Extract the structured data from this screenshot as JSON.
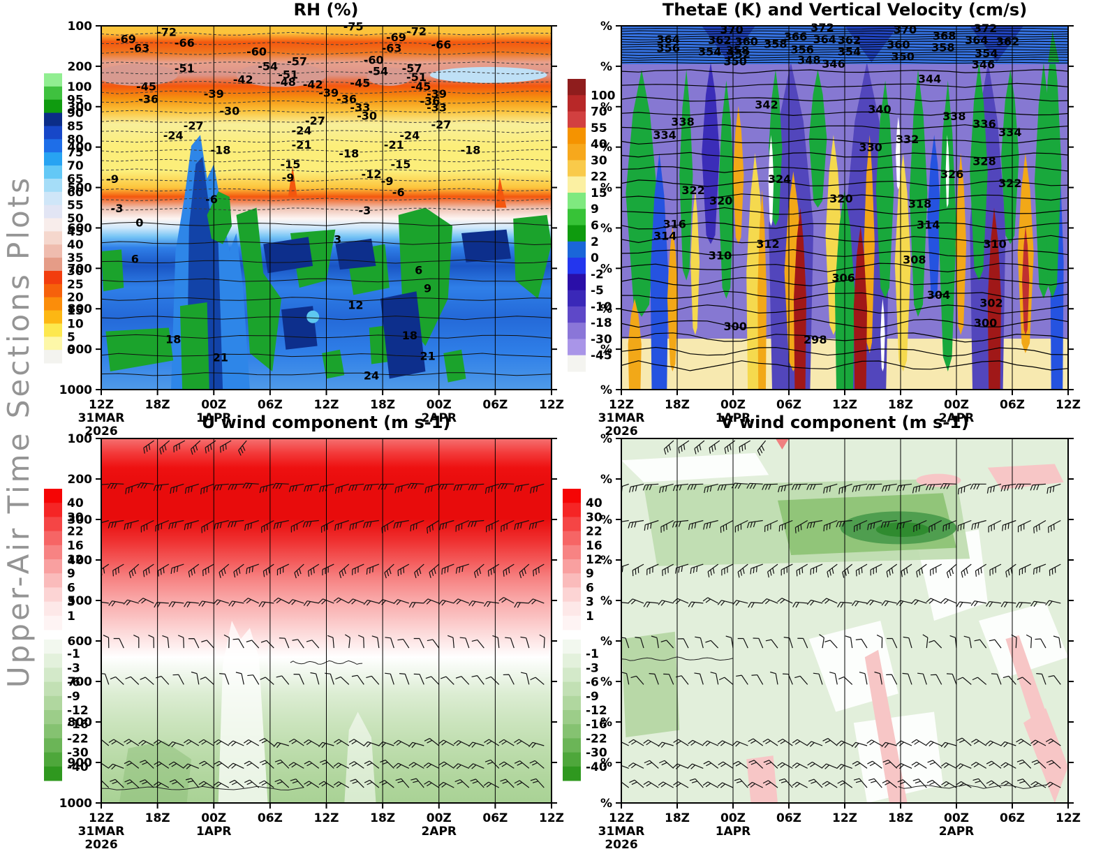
{
  "figure": {
    "vertical_title": "Upper-Air Time Sections Plots"
  },
  "chart_data": [
    {
      "id": "rh",
      "type": "contour",
      "title": "RH (%)",
      "y_axis": {
        "ticks": [
          "100",
          "200",
          "300",
          "400",
          "500",
          "600",
          "700",
          "800",
          "900",
          "1000"
        ]
      },
      "x_axis": {
        "ticks": [
          "12Z",
          "18Z",
          "00Z",
          "06Z",
          "12Z",
          "18Z",
          "00Z",
          "06Z",
          "12Z"
        ],
        "dates": [
          "31MAR",
          "",
          "1APR",
          "",
          "",
          "",
          "2APR",
          "",
          ""
        ],
        "year": "2026"
      },
      "colorbar": {
        "labels": [
          "100",
          "95",
          "90",
          "85",
          "80",
          "75",
          "70",
          "65",
          "60",
          "55",
          "50",
          "45",
          "40",
          "35",
          "30",
          "25",
          "20",
          "15",
          "10",
          "5",
          "0"
        ],
        "colors": [
          "#91ee91",
          "#3fc13f",
          "#0f9b0f",
          "#0b2d88",
          "#1747c8",
          "#1e6ee8",
          "#27a3f2",
          "#63c8f6",
          "#a5ddf8",
          "#cfe6f8",
          "#e2e5f4",
          "#f8edeb",
          "#f5d7cd",
          "#efbcae",
          "#e59c87",
          "#f23d0e",
          "#f6610b",
          "#fb8d0a",
          "#fdb713",
          "#fde84e",
          "#fdf7a8",
          "#f3f3ef"
        ]
      },
      "contour_labels": [
        [
          0.56,
          0.012,
          "-75"
        ],
        [
          0.145,
          0.028,
          "-72"
        ],
        [
          0.7,
          0.026,
          "-72"
        ],
        [
          0.055,
          0.047,
          "-69"
        ],
        [
          0.655,
          0.042,
          "-69"
        ],
        [
          0.185,
          0.058,
          "-66"
        ],
        [
          0.755,
          0.062,
          "-66"
        ],
        [
          0.085,
          0.072,
          "-63"
        ],
        [
          0.645,
          0.072,
          "-63"
        ],
        [
          0.345,
          0.082,
          "-60"
        ],
        [
          0.605,
          0.105,
          "-60"
        ],
        [
          0.435,
          0.108,
          "-57"
        ],
        [
          0.69,
          0.128,
          "-57"
        ],
        [
          0.37,
          0.122,
          "-54"
        ],
        [
          0.615,
          0.135,
          "-54"
        ],
        [
          0.185,
          0.128,
          "-51"
        ],
        [
          0.415,
          0.145,
          "-51"
        ],
        [
          0.7,
          0.152,
          "-51"
        ],
        [
          0.41,
          0.165,
          "-48"
        ],
        [
          0.1,
          0.178,
          "-45"
        ],
        [
          0.575,
          0.168,
          "-45"
        ],
        [
          0.71,
          0.178,
          "-45"
        ],
        [
          0.315,
          0.158,
          "-42"
        ],
        [
          0.47,
          0.172,
          "-42"
        ],
        [
          0.25,
          0.198,
          "-39"
        ],
        [
          0.505,
          0.195,
          "-39"
        ],
        [
          0.745,
          0.198,
          "-39"
        ],
        [
          0.105,
          0.212,
          "-36"
        ],
        [
          0.545,
          0.212,
          "-36"
        ],
        [
          0.73,
          0.218,
          "-36"
        ],
        [
          0.575,
          0.235,
          "-33"
        ],
        [
          0.745,
          0.235,
          "-33"
        ],
        [
          0.285,
          0.245,
          "-30"
        ],
        [
          0.59,
          0.258,
          "-30"
        ],
        [
          0.205,
          0.285,
          "-27"
        ],
        [
          0.475,
          0.272,
          "-27"
        ],
        [
          0.755,
          0.282,
          "-27"
        ],
        [
          0.16,
          0.312,
          "-24"
        ],
        [
          0.445,
          0.298,
          "-24"
        ],
        [
          0.685,
          0.312,
          "-24"
        ],
        [
          0.445,
          0.338,
          "-21"
        ],
        [
          0.65,
          0.338,
          "-21"
        ],
        [
          0.265,
          0.352,
          "-18"
        ],
        [
          0.55,
          0.362,
          "-18"
        ],
        [
          0.82,
          0.352,
          "-18"
        ],
        [
          0.42,
          0.392,
          "-15"
        ],
        [
          0.665,
          0.392,
          "-15"
        ],
        [
          0.6,
          0.418,
          "-12"
        ],
        [
          0.025,
          0.432,
          "-9"
        ],
        [
          0.415,
          0.428,
          "-9"
        ],
        [
          0.635,
          0.438,
          "-9"
        ],
        [
          0.245,
          0.488,
          "-6"
        ],
        [
          0.66,
          0.468,
          "-6"
        ],
        [
          0.035,
          0.512,
          "-3"
        ],
        [
          0.585,
          0.518,
          "-3"
        ],
        [
          0.085,
          0.552,
          "0"
        ],
        [
          0.525,
          0.598,
          "3"
        ],
        [
          0.075,
          0.652,
          "6"
        ],
        [
          0.705,
          0.682,
          "6"
        ],
        [
          0.725,
          0.732,
          "9"
        ],
        [
          0.565,
          0.778,
          "12"
        ],
        [
          0.16,
          0.872,
          "18"
        ],
        [
          0.685,
          0.862,
          "18"
        ],
        [
          0.265,
          0.922,
          "21"
        ],
        [
          0.725,
          0.918,
          "21"
        ],
        [
          0.6,
          0.972,
          "24"
        ]
      ]
    },
    {
      "id": "thetae",
      "type": "contour",
      "title": "ThetaE (K) and Vertical Velocity (cm/s)",
      "y_axis": {
        "ticks": [
          "%",
          "%",
          "%",
          "%",
          "%",
          "%",
          "%",
          "%",
          "%",
          "%"
        ]
      },
      "x_axis": {
        "ticks": [
          "12Z",
          "18Z",
          "00Z",
          "06Z",
          "12Z",
          "18Z",
          "00Z",
          "06Z",
          "12Z"
        ],
        "dates": [
          "31MAR",
          "",
          "1APR",
          "",
          "",
          "",
          "2APR",
          "",
          ""
        ],
        "year": "2026"
      },
      "colorbar": {
        "labels": [
          "100",
          "70",
          "55",
          "40",
          "30",
          "22",
          "15",
          "9",
          "6",
          "2",
          "0",
          "-2",
          "-5",
          "-10",
          "-18",
          "-30",
          "-45"
        ],
        "colors": [
          "#8f1d1d",
          "#b82828",
          "#d24040",
          "#f59300",
          "#f7a81c",
          "#f9ca4a",
          "#fbf0a2",
          "#7fe97f",
          "#37c337",
          "#0e9b0e",
          "#1a66d9",
          "#2336ee",
          "#2a0fa8",
          "#3a28b8",
          "#5e48c8",
          "#8a76d8",
          "#a995e8",
          "#f4f4f0"
        ]
      },
      "contour_labels": [
        [
          0.105,
          0.048,
          "364"
        ],
        [
          0.105,
          0.072,
          "356"
        ],
        [
          0.247,
          0.021,
          "370"
        ],
        [
          0.22,
          0.05,
          "362"
        ],
        [
          0.28,
          0.054,
          "360"
        ],
        [
          0.26,
          0.078,
          "358"
        ],
        [
          0.198,
          0.082,
          "354"
        ],
        [
          0.263,
          0.088,
          "352"
        ],
        [
          0.255,
          0.108,
          "350"
        ],
        [
          0.42,
          0.105,
          "348"
        ],
        [
          0.475,
          0.115,
          "346"
        ],
        [
          0.45,
          0.015,
          "372"
        ],
        [
          0.39,
          0.04,
          "366"
        ],
        [
          0.455,
          0.048,
          "364"
        ],
        [
          0.51,
          0.05,
          "362"
        ],
        [
          0.345,
          0.06,
          "358"
        ],
        [
          0.405,
          0.076,
          "356"
        ],
        [
          0.51,
          0.082,
          "354"
        ],
        [
          0.63,
          0.095,
          "350"
        ],
        [
          0.635,
          0.021,
          "370"
        ],
        [
          0.723,
          0.038,
          "368"
        ],
        [
          0.62,
          0.062,
          "360"
        ],
        [
          0.72,
          0.07,
          "358"
        ],
        [
          0.817,
          0.086,
          "354"
        ],
        [
          0.81,
          0.117,
          "346"
        ],
        [
          0.815,
          0.017,
          "372"
        ],
        [
          0.795,
          0.05,
          "364"
        ],
        [
          0.865,
          0.054,
          "362"
        ],
        [
          0.69,
          0.156,
          "344"
        ],
        [
          0.325,
          0.227,
          "342"
        ],
        [
          0.578,
          0.24,
          "340"
        ],
        [
          0.1375,
          0.274,
          "338"
        ],
        [
          0.745,
          0.259,
          "338"
        ],
        [
          0.8125,
          0.28,
          "336"
        ],
        [
          0.097,
          0.311,
          "334"
        ],
        [
          0.87,
          0.303,
          "334"
        ],
        [
          0.64,
          0.322,
          "332"
        ],
        [
          0.558,
          0.345,
          "330"
        ],
        [
          0.8125,
          0.383,
          "328"
        ],
        [
          0.74,
          0.418,
          "326"
        ],
        [
          0.354,
          0.432,
          "324"
        ],
        [
          0.161,
          0.463,
          "322"
        ],
        [
          0.87,
          0.443,
          "322"
        ],
        [
          0.223,
          0.491,
          "320"
        ],
        [
          0.492,
          0.486,
          "320"
        ],
        [
          0.668,
          0.5,
          "318"
        ],
        [
          0.119,
          0.556,
          "316"
        ],
        [
          0.098,
          0.588,
          "314"
        ],
        [
          0.687,
          0.558,
          "314"
        ],
        [
          0.328,
          0.61,
          "312"
        ],
        [
          0.221,
          0.642,
          "310"
        ],
        [
          0.836,
          0.61,
          "310"
        ],
        [
          0.656,
          0.654,
          "308"
        ],
        [
          0.497,
          0.703,
          "306"
        ],
        [
          0.71,
          0.75,
          "304"
        ],
        [
          0.828,
          0.773,
          "302"
        ],
        [
          0.815,
          0.827,
          "300"
        ],
        [
          0.255,
          0.837,
          "300"
        ],
        [
          0.434,
          0.873,
          "298"
        ]
      ]
    },
    {
      "id": "uwind",
      "type": "contour+barbs",
      "title": "U wind component (m s-1)",
      "y_axis": {
        "ticks": [
          "100",
          "200",
          "300",
          "400",
          "500",
          "600",
          "700",
          "800",
          "900",
          "1000"
        ]
      },
      "x_axis": {
        "ticks": [
          "12Z",
          "18Z",
          "00Z",
          "06Z",
          "12Z",
          "18Z",
          "00Z",
          "06Z",
          "12Z"
        ],
        "dates": [
          "31MAR",
          "",
          "1APR",
          "",
          "",
          "",
          "2APR",
          "",
          ""
        ],
        "year": "2026"
      },
      "colorbar": {
        "positive": {
          "labels": [
            "40",
            "30",
            "22",
            "16",
            "12",
            "9",
            "6",
            "3",
            "1"
          ],
          "colors": [
            "#f50505",
            "#f52525",
            "#f54545",
            "#f66565",
            "#f78383",
            "#f9a0a0",
            "#fabbbb",
            "#fcd4d4",
            "#fde8e8",
            "#fef4f4"
          ]
        },
        "negative": {
          "labels": [
            "-1",
            "-3",
            "-6",
            "-9",
            "-12",
            "-16",
            "-22",
            "-30",
            "-40"
          ],
          "colors": [
            "#f2f8ef",
            "#e3f1dc",
            "#d3e9c9",
            "#c2e0b4",
            "#b0d79f",
            "#9ccd89",
            "#85c271",
            "#6bb557",
            "#4ea73b",
            "#2f981f"
          ]
        }
      },
      "barb_levels_frac": [
        0.125,
        0.225,
        0.345,
        0.452,
        0.575,
        0.675,
        0.843,
        0.905,
        0.958
      ],
      "contour_labels": []
    },
    {
      "id": "vwind",
      "type": "contour+barbs",
      "title": "V wind component (m s-1)",
      "y_axis": {
        "ticks": [
          "%",
          "%",
          "%",
          "%",
          "%",
          "%",
          "%",
          "%",
          "%",
          "%"
        ]
      },
      "x_axis": {
        "ticks": [
          "12Z",
          "18Z",
          "00Z",
          "06Z",
          "12Z",
          "18Z",
          "00Z",
          "06Z",
          "12Z"
        ],
        "dates": [
          "31MAR",
          "",
          "1APR",
          "",
          "",
          "",
          "2APR",
          "",
          ""
        ],
        "year": "2026"
      },
      "colorbar": {
        "positive": {
          "labels": [
            "40",
            "30",
            "22",
            "16",
            "12",
            "9",
            "6",
            "3",
            "1"
          ],
          "colors": [
            "#f50505",
            "#f52525",
            "#f54545",
            "#f66565",
            "#f78383",
            "#f9a0a0",
            "#fabbbb",
            "#fcd4d4",
            "#fde8e8",
            "#fef4f4"
          ]
        },
        "negative": {
          "labels": [
            "-1",
            "-3",
            "-6",
            "-9",
            "-12",
            "-16",
            "-22",
            "-30",
            "-40"
          ],
          "colors": [
            "#f2f8ef",
            "#e3f1dc",
            "#d3e9c9",
            "#c2e0b4",
            "#b0d79f",
            "#9ccd89",
            "#85c271",
            "#6bb557",
            "#4ea73b",
            "#2f981f"
          ]
        }
      },
      "barb_levels_frac": [
        0.125,
        0.225,
        0.345,
        0.452,
        0.575,
        0.675,
        0.843,
        0.905,
        0.958
      ],
      "contour_labels": []
    }
  ]
}
